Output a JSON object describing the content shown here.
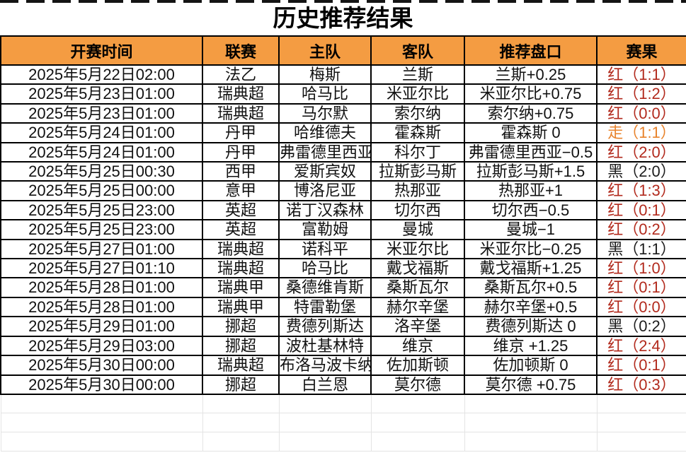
{
  "page_title": "历史推荐结果",
  "colors": {
    "header_bg": "#F49C42",
    "table_border": "#000000",
    "ghost_grid": "#E4E4E4",
    "verdict_colors": {
      "红": "#B22A1D",
      "黑": "#1C1C1C",
      "走": "#E8832C"
    }
  },
  "table": {
    "headers": [
      "开赛时间",
      "联赛",
      "主队",
      "客队",
      "推荐盘口",
      "赛果"
    ],
    "result_paren_open": "（",
    "result_paren_close": "）",
    "rows": [
      {
        "time": "2025年5月22日02:00",
        "league": "法乙",
        "home": "梅斯",
        "away": "兰斯",
        "handicap": "兰斯+0.25",
        "verdict": "红",
        "score": "1:1"
      },
      {
        "time": "2025年5月23日01:00",
        "league": "瑞典超",
        "home": "哈马比",
        "away": "米亚尔比",
        "handicap": "米亚尔比+0.75",
        "verdict": "红",
        "score": "1:2"
      },
      {
        "time": "2025年5月23日01:00",
        "league": "瑞典超",
        "home": "马尔默",
        "away": "索尔纳",
        "handicap": "索尔纳+0.75",
        "verdict": "红",
        "score": "0:0"
      },
      {
        "time": "2025年5月24日01:00",
        "league": "丹甲",
        "home": "哈维德夫",
        "away": "霍森斯",
        "handicap": "霍森斯 0",
        "verdict": "走",
        "score": "1:1"
      },
      {
        "time": "2025年5月24日01:00",
        "league": "丹甲",
        "home": "弗雷德里西亚",
        "away": "科尔丁",
        "handicap": "弗雷德里西亚−0.5",
        "verdict": "红",
        "score": "2:0"
      },
      {
        "time": "2025年5月25日00:30",
        "league": "西甲",
        "home": "爱斯宾奴",
        "away": "拉斯彭马斯",
        "handicap": "拉斯彭马斯+1.5",
        "verdict": "黑",
        "score": "2:0"
      },
      {
        "time": "2025年5月25日00:00",
        "league": "意甲",
        "home": "博洛尼亚",
        "away": "热那亚",
        "handicap": "热那亚+1",
        "verdict": "红",
        "score": "1:3"
      },
      {
        "time": "2025年5月25日23:00",
        "league": "英超",
        "home": "诺丁汉森林",
        "away": "切尔西",
        "handicap": "切尔西−0.5",
        "verdict": "红",
        "score": "0:1"
      },
      {
        "time": "2025年5月25日23:00",
        "league": "英超",
        "home": "富勒姆",
        "away": "曼城",
        "handicap": "曼城−1",
        "verdict": "红",
        "score": "0:2"
      },
      {
        "time": "2025年5月27日01:00",
        "league": "瑞典超",
        "home": "诺科平",
        "away": "米亚尔比",
        "handicap": "米亚尔比−0.25",
        "verdict": "黑",
        "score": "1:1"
      },
      {
        "time": "2025年5月27日01:10",
        "league": "瑞典超",
        "home": "哈马比",
        "away": "戴戈福斯",
        "handicap": "戴戈福斯+1.25",
        "verdict": "红",
        "score": "1:0"
      },
      {
        "time": "2025年5月28日01:00",
        "league": "瑞典甲",
        "home": "桑德维肯斯",
        "away": "桑斯瓦尔",
        "handicap": "桑斯瓦尔+0.5",
        "verdict": "红",
        "score": "0:1"
      },
      {
        "time": "2025年5月28日01:00",
        "league": "瑞典甲",
        "home": "特雷勒堡",
        "away": "赫尔辛堡",
        "handicap": "赫尔辛堡+0.5",
        "verdict": "红",
        "score": "0:0"
      },
      {
        "time": "2025年5月29日01:00",
        "league": "挪超",
        "home": "费德列斯达",
        "away": "洛辛堡",
        "handicap": "费德列斯达 0",
        "verdict": "黑",
        "score": "0:2"
      },
      {
        "time": "2025年5月29日03:00",
        "league": "挪超",
        "home": "波杜基林特",
        "away": "维京",
        "handicap": "维京 +1.25",
        "verdict": "红",
        "score": "2:4"
      },
      {
        "time": "2025年5月30日00:00",
        "league": "瑞典超",
        "home": "布洛马波卡纳",
        "away": "佐加斯顿",
        "handicap": "佐加顿斯 0",
        "verdict": "红",
        "score": "0:1"
      },
      {
        "time": "2025年5月30日00:00",
        "league": "挪超",
        "home": "白兰恩",
        "away": "莫尔德",
        "handicap": "莫尔德 +0.75",
        "verdict": "红",
        "score": "0:3"
      }
    ],
    "empty_row_count": 3
  }
}
